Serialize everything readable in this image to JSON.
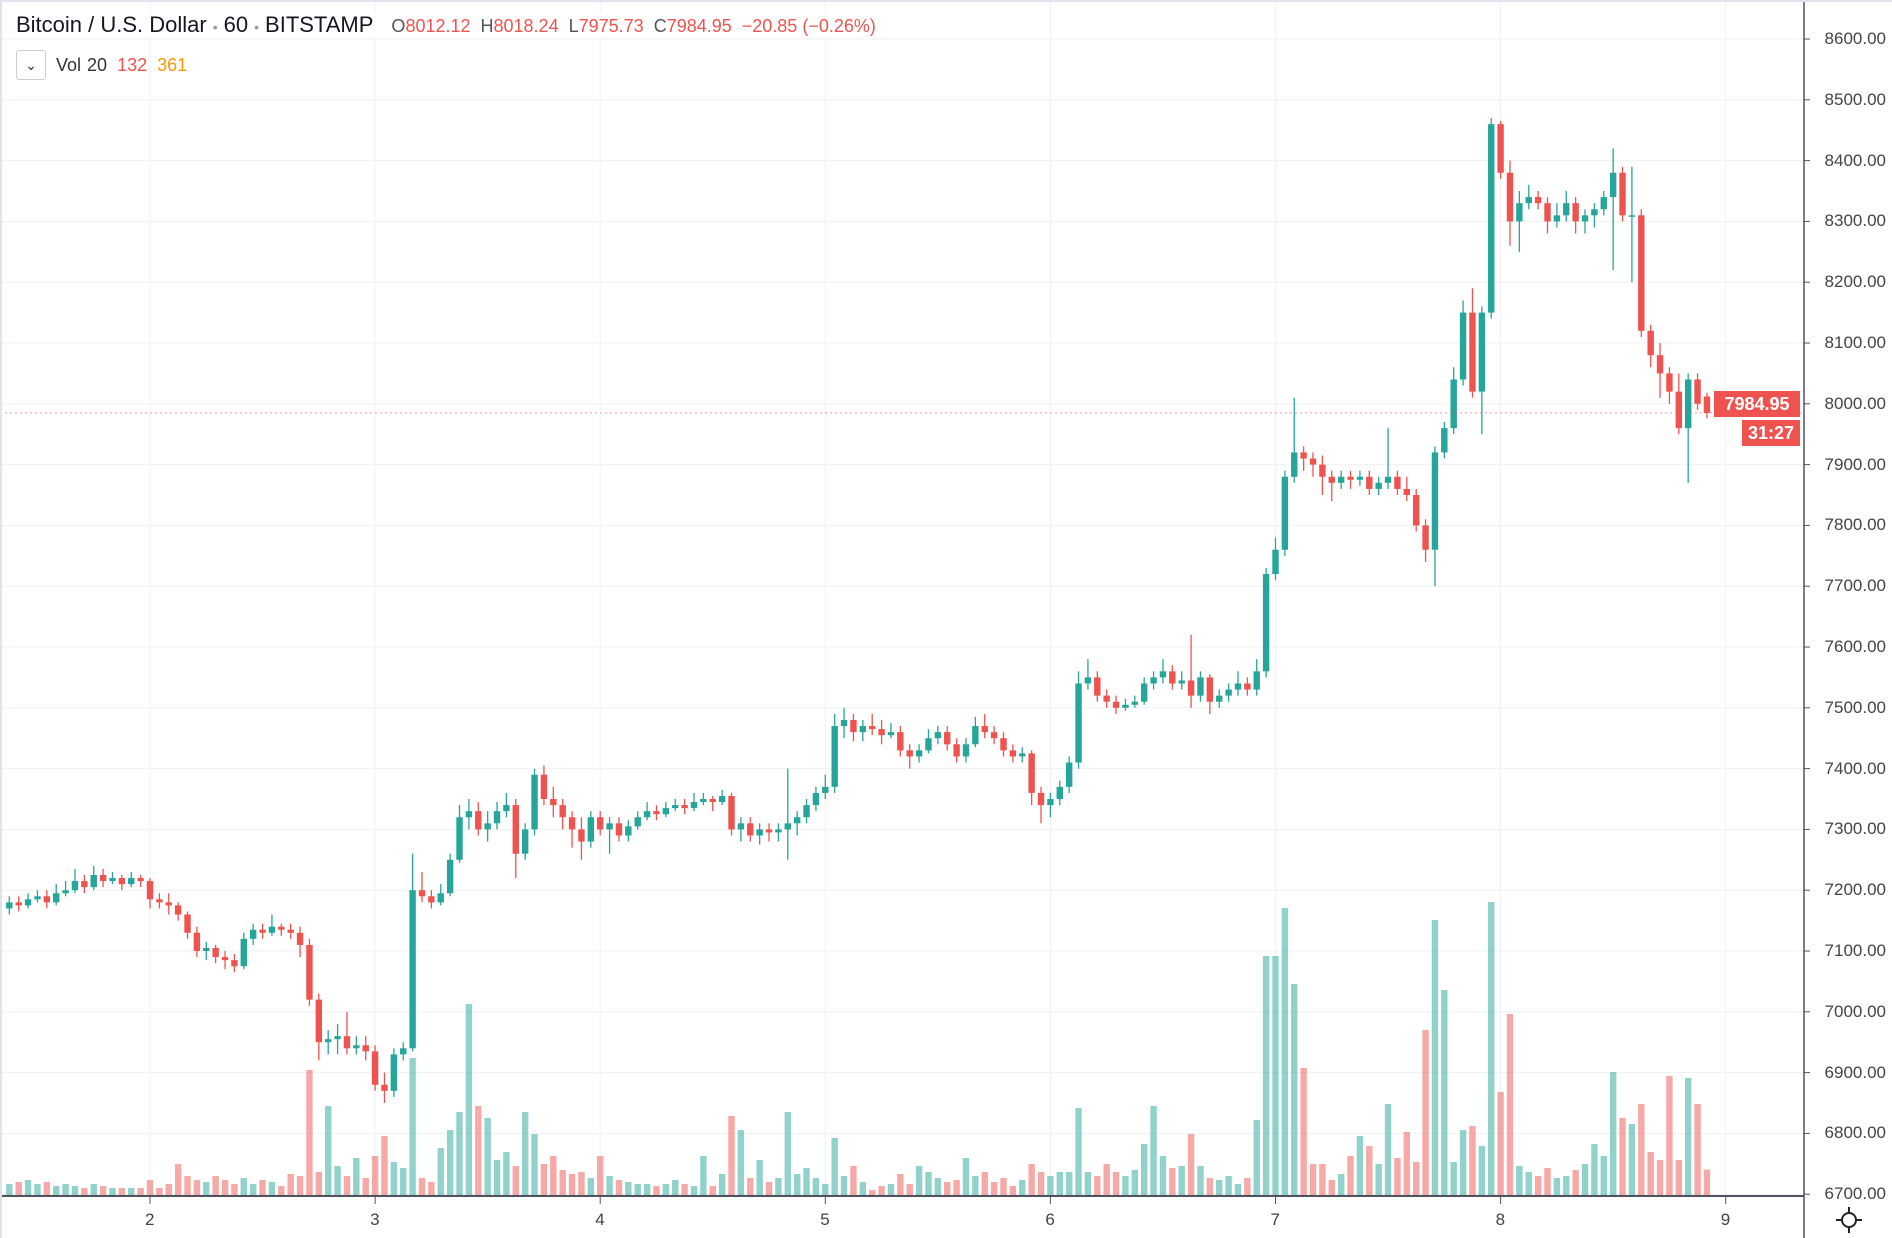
{
  "header": {
    "symbol": "Bitcoin / U.S. Dollar",
    "interval": "60",
    "exchange": "BITSTAMP",
    "ohlc": [
      {
        "k": "O",
        "v": "8012.12"
      },
      {
        "k": "H",
        "v": "8018.24"
      },
      {
        "k": "L",
        "v": "7975.73"
      },
      {
        "k": "C",
        "v": "7984.95"
      }
    ],
    "change": "−20.85 (−0.26%)"
  },
  "volume_legend": {
    "label": "Vol",
    "length": "20",
    "value": "132",
    "ma": "361",
    "value_color": "#ef5350",
    "ma_color": "#ff9800"
  },
  "last_price": {
    "label": "7984.95",
    "countdown": "31:27"
  },
  "colors": {
    "up": "#26a69a",
    "down": "#ef5350",
    "grid": "#eef1f5"
  },
  "chart_data": {
    "type": "candlestick",
    "title": "Bitcoin / U.S. Dollar · 60 · BITSTAMP",
    "x_ticks": [
      "2",
      "3",
      "4",
      "5",
      "6",
      "7",
      "8",
      "9"
    ],
    "y_ticks": [
      "8600.00",
      "8500.00",
      "8400.00",
      "8300.00",
      "8200.00",
      "8100.00",
      "8000.00",
      "7900.00",
      "7800.00",
      "7700.00",
      "7600.00",
      "7500.00",
      "7400.00",
      "7300.00",
      "7200.00",
      "7100.00",
      "7000.00",
      "6900.00",
      "6800.00",
      "6700.00"
    ],
    "ylim": [
      6700,
      8600
    ],
    "start_day": 1.375,
    "hours_per_candle": 1,
    "candles_fields": [
      "open",
      "high",
      "low",
      "close",
      "volume"
    ],
    "candles": [
      [
        7170,
        7190,
        7160,
        7180,
        60
      ],
      [
        7180,
        7190,
        7165,
        7175,
        70
      ],
      [
        7175,
        7195,
        7170,
        7185,
        80
      ],
      [
        7185,
        7200,
        7180,
        7190,
        60
      ],
      [
        7190,
        7200,
        7170,
        7180,
        70
      ],
      [
        7180,
        7210,
        7175,
        7195,
        50
      ],
      [
        7195,
        7215,
        7190,
        7200,
        60
      ],
      [
        7200,
        7235,
        7195,
        7215,
        50
      ],
      [
        7215,
        7225,
        7195,
        7205,
        40
      ],
      [
        7205,
        7240,
        7200,
        7225,
        60
      ],
      [
        7225,
        7235,
        7205,
        7215,
        50
      ],
      [
        7215,
        7230,
        7210,
        7220,
        40
      ],
      [
        7220,
        7225,
        7200,
        7210,
        40
      ],
      [
        7210,
        7230,
        7205,
        7220,
        40
      ],
      [
        7220,
        7225,
        7205,
        7215,
        40
      ],
      [
        7215,
        7220,
        7170,
        7185,
        80
      ],
      [
        7185,
        7195,
        7170,
        7180,
        40
      ],
      [
        7180,
        7195,
        7160,
        7175,
        60
      ],
      [
        7175,
        7180,
        7150,
        7160,
        160
      ],
      [
        7160,
        7165,
        7120,
        7130,
        100
      ],
      [
        7130,
        7140,
        7090,
        7100,
        80
      ],
      [
        7100,
        7115,
        7085,
        7105,
        70
      ],
      [
        7105,
        7110,
        7080,
        7090,
        100
      ],
      [
        7090,
        7100,
        7070,
        7085,
        80
      ],
      [
        7085,
        7095,
        7065,
        7075,
        60
      ],
      [
        7075,
        7130,
        7070,
        7120,
        90
      ],
      [
        7120,
        7145,
        7110,
        7135,
        60
      ],
      [
        7135,
        7145,
        7120,
        7130,
        80
      ],
      [
        7130,
        7160,
        7125,
        7140,
        70
      ],
      [
        7140,
        7145,
        7125,
        7135,
        50
      ],
      [
        7135,
        7145,
        7120,
        7130,
        110
      ],
      [
        7130,
        7140,
        7090,
        7110,
        100
      ],
      [
        7110,
        7120,
        7010,
        7020,
        630
      ],
      [
        7020,
        7030,
        6920,
        6950,
        120
      ],
      [
        6950,
        6970,
        6930,
        6955,
        450
      ],
      [
        6955,
        6980,
        6930,
        6960,
        150
      ],
      [
        6960,
        7000,
        6930,
        6940,
        100
      ],
      [
        6940,
        6960,
        6930,
        6945,
        190
      ],
      [
        6945,
        6960,
        6920,
        6935,
        90
      ],
      [
        6935,
        6945,
        6870,
        6880,
        200
      ],
      [
        6880,
        6900,
        6850,
        6870,
        300
      ],
      [
        6870,
        6940,
        6860,
        6930,
        170
      ],
      [
        6930,
        6950,
        6920,
        6940,
        140
      ],
      [
        6940,
        7260,
        6935,
        7200,
        690
      ],
      [
        7200,
        7230,
        7180,
        7190,
        90
      ],
      [
        7190,
        7200,
        7170,
        7180,
        70
      ],
      [
        7180,
        7210,
        7175,
        7195,
        240
      ],
      [
        7195,
        7260,
        7190,
        7250,
        330
      ],
      [
        7250,
        7340,
        7245,
        7320,
        420
      ],
      [
        7320,
        7350,
        7300,
        7330,
        960
      ],
      [
        7330,
        7345,
        7290,
        7300,
        450
      ],
      [
        7300,
        7330,
        7280,
        7310,
        390
      ],
      [
        7310,
        7345,
        7300,
        7330,
        180
      ],
      [
        7330,
        7360,
        7320,
        7340,
        220
      ],
      [
        7340,
        7350,
        7220,
        7260,
        150
      ],
      [
        7260,
        7310,
        7250,
        7300,
        420
      ],
      [
        7300,
        7400,
        7290,
        7390,
        310
      ],
      [
        7390,
        7405,
        7340,
        7350,
        160
      ],
      [
        7350,
        7370,
        7320,
        7340,
        200
      ],
      [
        7340,
        7350,
        7300,
        7320,
        130
      ],
      [
        7320,
        7330,
        7270,
        7300,
        110
      ],
      [
        7300,
        7320,
        7250,
        7280,
        120
      ],
      [
        7280,
        7330,
        7270,
        7320,
        90
      ],
      [
        7320,
        7330,
        7290,
        7300,
        200
      ],
      [
        7300,
        7320,
        7260,
        7310,
        100
      ],
      [
        7310,
        7320,
        7280,
        7290,
        80
      ],
      [
        7290,
        7315,
        7280,
        7305,
        70
      ],
      [
        7305,
        7330,
        7300,
        7320,
        60
      ],
      [
        7320,
        7345,
        7315,
        7330,
        60
      ],
      [
        7330,
        7340,
        7315,
        7325,
        50
      ],
      [
        7325,
        7345,
        7320,
        7335,
        60
      ],
      [
        7335,
        7350,
        7330,
        7340,
        80
      ],
      [
        7340,
        7350,
        7325,
        7335,
        60
      ],
      [
        7335,
        7360,
        7330,
        7345,
        50
      ],
      [
        7345,
        7360,
        7340,
        7350,
        200
      ],
      [
        7350,
        7355,
        7330,
        7345,
        50
      ],
      [
        7345,
        7365,
        7340,
        7355,
        110
      ],
      [
        7355,
        7360,
        7290,
        7300,
        400
      ],
      [
        7300,
        7320,
        7280,
        7310,
        330
      ],
      [
        7310,
        7320,
        7280,
        7290,
        90
      ],
      [
        7290,
        7310,
        7275,
        7300,
        180
      ],
      [
        7300,
        7310,
        7280,
        7295,
        70
      ],
      [
        7295,
        7310,
        7280,
        7300,
        90
      ],
      [
        7300,
        7400,
        7250,
        7310,
        420
      ],
      [
        7310,
        7330,
        7290,
        7320,
        110
      ],
      [
        7320,
        7350,
        7310,
        7340,
        140
      ],
      [
        7340,
        7370,
        7330,
        7360,
        90
      ],
      [
        7360,
        7390,
        7350,
        7370,
        60
      ],
      [
        7370,
        7490,
        7360,
        7470,
        290
      ],
      [
        7470,
        7500,
        7450,
        7480,
        100
      ],
      [
        7480,
        7490,
        7445,
        7460,
        150
      ],
      [
        7460,
        7480,
        7445,
        7470,
        70
      ],
      [
        7470,
        7490,
        7455,
        7465,
        30
      ],
      [
        7465,
        7480,
        7440,
        7455,
        50
      ],
      [
        7455,
        7475,
        7450,
        7460,
        60
      ],
      [
        7460,
        7470,
        7420,
        7430,
        110
      ],
      [
        7430,
        7440,
        7400,
        7420,
        60
      ],
      [
        7420,
        7440,
        7410,
        7430,
        150
      ],
      [
        7430,
        7465,
        7425,
        7450,
        120
      ],
      [
        7450,
        7470,
        7440,
        7460,
        90
      ],
      [
        7460,
        7470,
        7430,
        7440,
        70
      ],
      [
        7440,
        7450,
        7410,
        7420,
        80
      ],
      [
        7420,
        7450,
        7410,
        7440,
        190
      ],
      [
        7440,
        7485,
        7435,
        7470,
        100
      ],
      [
        7470,
        7490,
        7450,
        7460,
        120
      ],
      [
        7460,
        7470,
        7440,
        7450,
        70
      ],
      [
        7450,
        7460,
        7420,
        7430,
        90
      ],
      [
        7430,
        7440,
        7410,
        7420,
        50
      ],
      [
        7420,
        7435,
        7410,
        7425,
        80
      ],
      [
        7425,
        7430,
        7340,
        7360,
        160
      ],
      [
        7360,
        7370,
        7310,
        7340,
        120
      ],
      [
        7340,
        7360,
        7320,
        7350,
        100
      ],
      [
        7350,
        7380,
        7340,
        7370,
        120
      ],
      [
        7370,
        7420,
        7360,
        7410,
        120
      ],
      [
        7410,
        7560,
        7400,
        7540,
        440
      ],
      [
        7540,
        7580,
        7530,
        7550,
        120
      ],
      [
        7550,
        7560,
        7510,
        7520,
        100
      ],
      [
        7520,
        7530,
        7500,
        7510,
        160
      ],
      [
        7510,
        7520,
        7490,
        7500,
        120
      ],
      [
        7500,
        7515,
        7495,
        7505,
        100
      ],
      [
        7505,
        7520,
        7500,
        7510,
        130
      ],
      [
        7510,
        7550,
        7505,
        7540,
        260
      ],
      [
        7540,
        7560,
        7530,
        7550,
        450
      ],
      [
        7550,
        7580,
        7540,
        7560,
        200
      ],
      [
        7560,
        7570,
        7530,
        7540,
        140
      ],
      [
        7540,
        7560,
        7530,
        7545,
        150
      ],
      [
        7545,
        7620,
        7500,
        7520,
        310
      ],
      [
        7520,
        7560,
        7510,
        7550,
        150
      ],
      [
        7550,
        7555,
        7490,
        7510,
        90
      ],
      [
        7510,
        7530,
        7500,
        7520,
        80
      ],
      [
        7520,
        7540,
        7510,
        7530,
        100
      ],
      [
        7530,
        7560,
        7520,
        7540,
        60
      ],
      [
        7540,
        7550,
        7520,
        7530,
        90
      ],
      [
        7530,
        7580,
        7520,
        7560,
        380
      ],
      [
        7560,
        7730,
        7550,
        7720,
        1200
      ],
      [
        7720,
        7780,
        7710,
        7760,
        1200
      ],
      [
        7760,
        7890,
        7750,
        7880,
        1440
      ],
      [
        7880,
        8010,
        7870,
        7920,
        1060
      ],
      [
        7920,
        7930,
        7890,
        7910,
        640
      ],
      [
        7910,
        7920,
        7880,
        7900,
        160
      ],
      [
        7900,
        7915,
        7850,
        7880,
        160
      ],
      [
        7880,
        7890,
        7840,
        7870,
        80
      ],
      [
        7870,
        7890,
        7860,
        7880,
        110
      ],
      [
        7880,
        7890,
        7860,
        7875,
        200
      ],
      [
        7875,
        7890,
        7865,
        7880,
        300
      ],
      [
        7880,
        7890,
        7850,
        7860,
        250
      ],
      [
        7860,
        7880,
        7850,
        7870,
        160
      ],
      [
        7870,
        7960,
        7860,
        7880,
        460
      ],
      [
        7880,
        7890,
        7850,
        7860,
        190
      ],
      [
        7860,
        7880,
        7840,
        7850,
        320
      ],
      [
        7850,
        7860,
        7790,
        7800,
        170
      ],
      [
        7800,
        7810,
        7740,
        7760,
        830
      ],
      [
        7760,
        7930,
        7700,
        7920,
        1380
      ],
      [
        7920,
        7970,
        7910,
        7960,
        1030
      ],
      [
        7960,
        8060,
        7950,
        8040,
        170
      ],
      [
        8040,
        8170,
        8030,
        8150,
        330
      ],
      [
        8150,
        8190,
        8010,
        8020,
        350
      ],
      [
        8020,
        8160,
        7950,
        8150,
        250
      ],
      [
        8150,
        8470,
        8140,
        8460,
        1470
      ],
      [
        8460,
        8465,
        8370,
        8380,
        520
      ],
      [
        8380,
        8400,
        8260,
        8300,
        910
      ],
      [
        8300,
        8350,
        8250,
        8330,
        150
      ],
      [
        8330,
        8360,
        8320,
        8340,
        120
      ],
      [
        8340,
        8350,
        8320,
        8330,
        100
      ],
      [
        8330,
        8340,
        8280,
        8300,
        140
      ],
      [
        8300,
        8330,
        8290,
        8310,
        90
      ],
      [
        8310,
        8350,
        8300,
        8330,
        100
      ],
      [
        8330,
        8340,
        8280,
        8300,
        130
      ],
      [
        8300,
        8320,
        8280,
        8310,
        160
      ],
      [
        8310,
        8330,
        8290,
        8320,
        260
      ],
      [
        8320,
        8350,
        8310,
        8340,
        200
      ],
      [
        8340,
        8420,
        8220,
        8380,
        620
      ],
      [
        8380,
        8390,
        8300,
        8310,
        390
      ],
      [
        8310,
        8390,
        8200,
        8310,
        360
      ],
      [
        8310,
        8320,
        8110,
        8120,
        460
      ],
      [
        8120,
        8130,
        8060,
        8080,
        220
      ],
      [
        8080,
        8100,
        8010,
        8050,
        180
      ],
      [
        8050,
        8060,
        8000,
        8020,
        600
      ],
      [
        8020,
        8050,
        7950,
        7960,
        180
      ],
      [
        7960,
        8050,
        7870,
        8040,
        590
      ],
      [
        8040,
        8050,
        7990,
        8000,
        460
      ],
      [
        8012,
        8018,
        7976,
        7985,
        132
      ]
    ]
  }
}
